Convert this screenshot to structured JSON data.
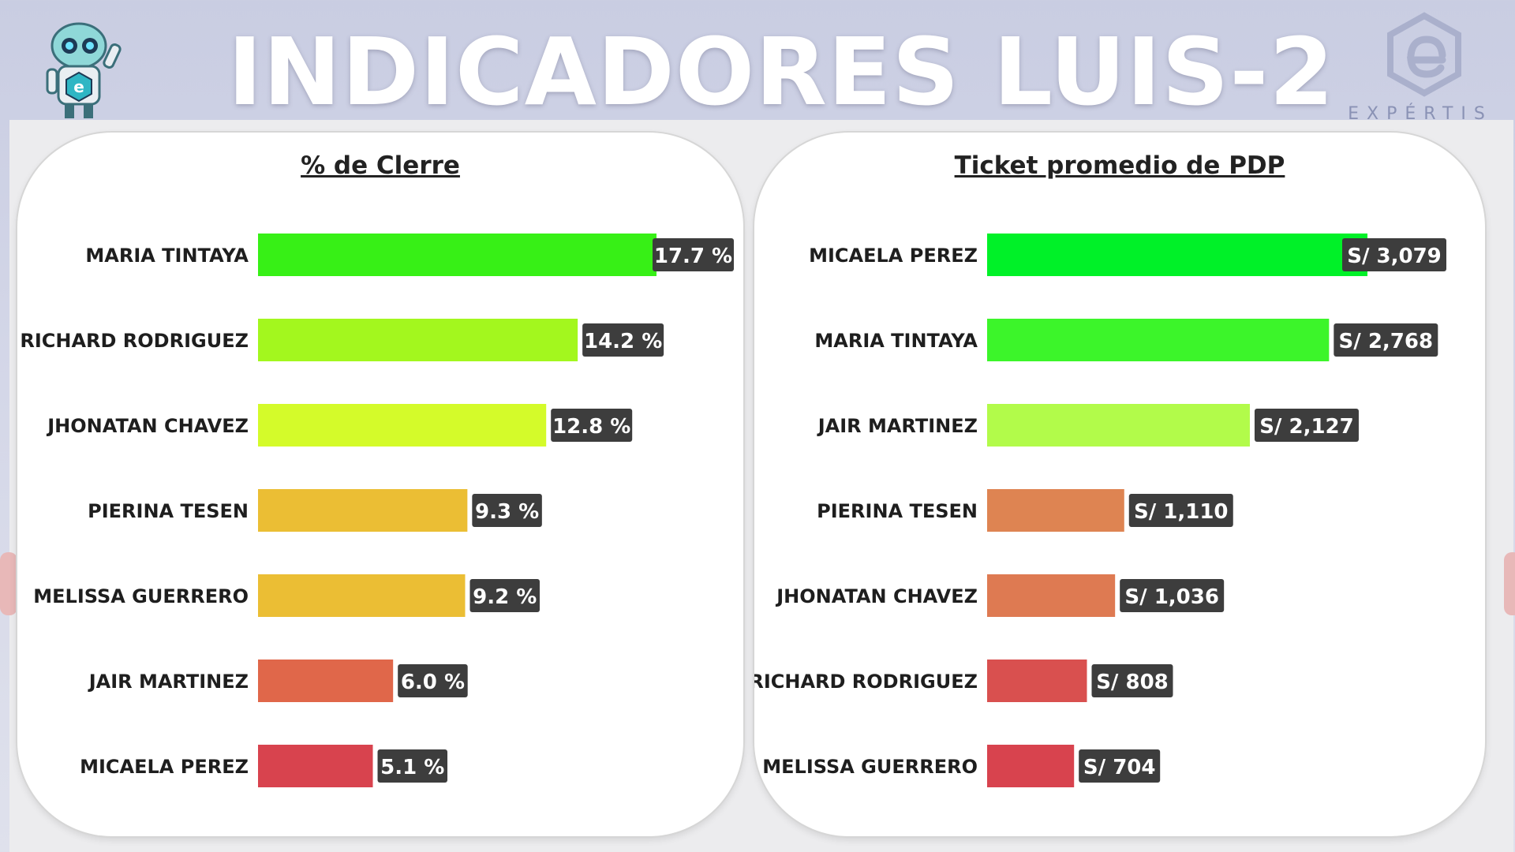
{
  "header": {
    "title": "INDICADORES LUIS-2",
    "logo_text": "EXPÉRTIS",
    "robot_icon": "robot-mascot-icon",
    "logo_icon": "hexagon-e-logo-icon"
  },
  "chart_data": [
    {
      "type": "bar",
      "orientation": "horizontal",
      "title": "% de Clerre",
      "categories": [
        "MARIA TINTAYA",
        "RICHARD RODRIGUEZ",
        "JHONATAN CHAVEZ",
        "PIERINA TESEN",
        "MELISSA GUERRERO",
        "JAIR MARTINEZ",
        "MICAELA PEREZ"
      ],
      "values": [
        17.7,
        14.2,
        12.8,
        9.3,
        9.2,
        6.0,
        5.1
      ],
      "labels": [
        "17.7 %",
        "14.2 %",
        "12.8 %",
        "9.3 %",
        "9.2 %",
        "6.0 %",
        "5.1 %"
      ],
      "colors": [
        "#37f016",
        "#a3f71e",
        "#d4fb2a",
        "#ebbe34",
        "#ebbe34",
        "#e0674a",
        "#d8434e"
      ],
      "xlim": [
        0,
        17.7
      ]
    },
    {
      "type": "bar",
      "orientation": "horizontal",
      "title": "Ticket promedio de PDP",
      "categories": [
        "MICAELA PEREZ",
        "MARIA TINTAYA",
        "JAIR MARTINEZ",
        "PIERINA TESEN",
        "JHONATAN CHAVEZ",
        "RICHARD RODRIGUEZ",
        "MELISSA GUERRERO"
      ],
      "values": [
        3079,
        2768,
        2127,
        1110,
        1036,
        808,
        704
      ],
      "labels": [
        "S/ 3,079",
        "S/ 2,768",
        "S/ 2,127",
        "S/ 1,110",
        "S/ 1,036",
        "S/ 808",
        "S/ 704"
      ],
      "colors": [
        "#00f128",
        "#3cf52a",
        "#b2fb4a",
        "#de8452",
        "#de7a52",
        "#d9504f",
        "#d8434e"
      ],
      "xlim": [
        0,
        3079
      ]
    }
  ]
}
